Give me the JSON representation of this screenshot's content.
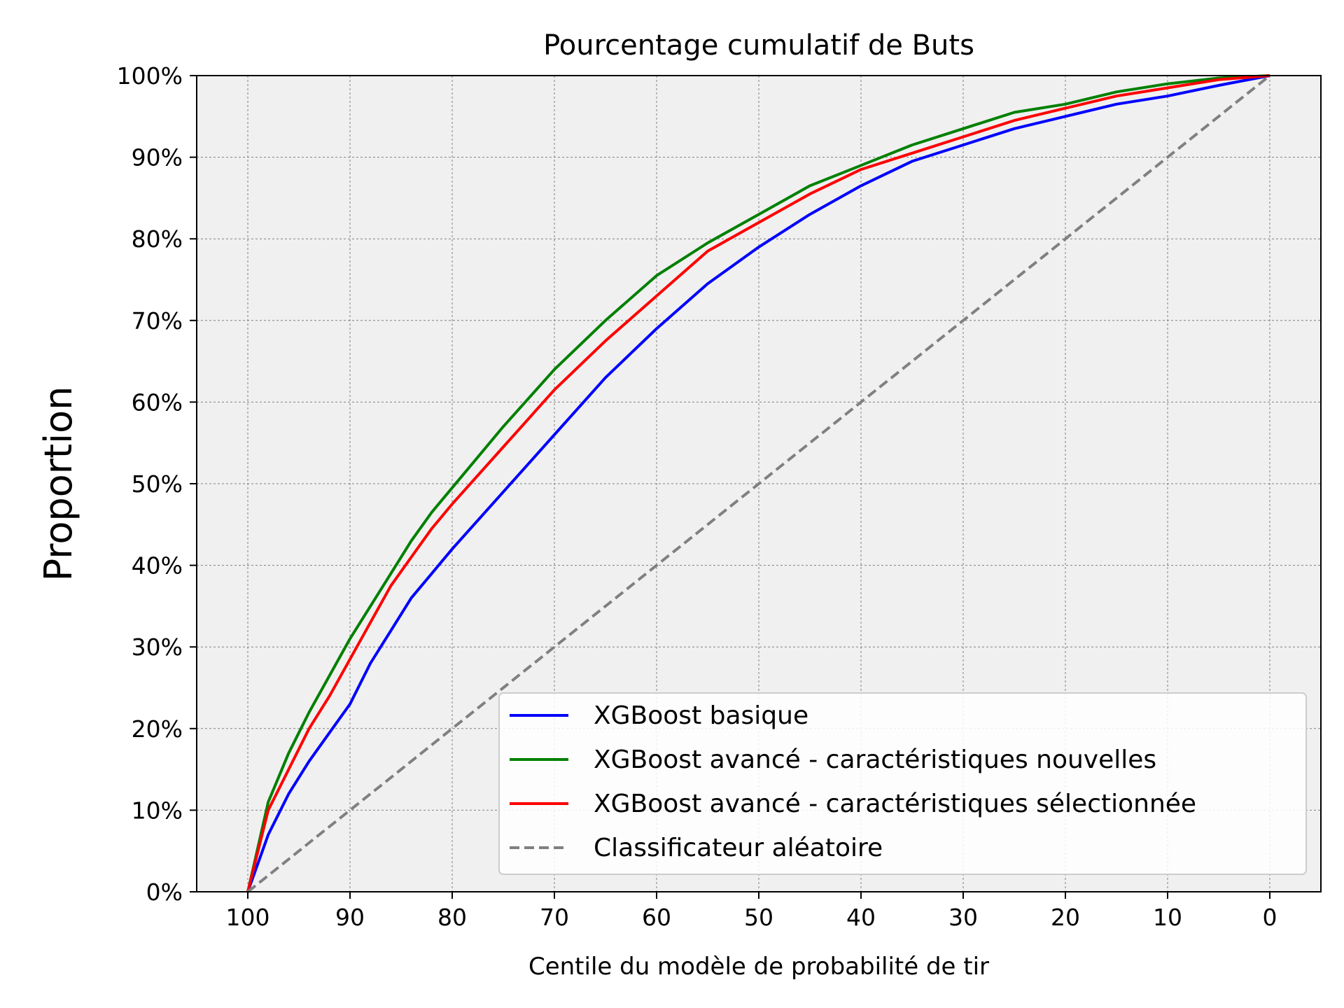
{
  "chart_data": {
    "type": "line",
    "title": "Pourcentage cumulatif de Buts",
    "xlabel": "Centile du modèle de probabilité de tir",
    "ylabel": "Proportion",
    "xlim": [
      105,
      -5
    ],
    "ylim": [
      0,
      100
    ],
    "x_reversed": true,
    "x_ticks": [
      100,
      90,
      80,
      70,
      60,
      50,
      40,
      30,
      20,
      10,
      0
    ],
    "x_tick_labels": [
      "100",
      "90",
      "80",
      "70",
      "60",
      "50",
      "40",
      "30",
      "20",
      "10",
      "0"
    ],
    "y_ticks": [
      0,
      10,
      20,
      30,
      40,
      50,
      60,
      70,
      80,
      90,
      100
    ],
    "y_tick_labels": [
      "0%",
      "10%",
      "20%",
      "30%",
      "40%",
      "50%",
      "60%",
      "70%",
      "80%",
      "90%",
      "100%"
    ],
    "grid": true,
    "legend_position": "bottom-right",
    "background_color": "#f0f0f0",
    "x": [
      100,
      98,
      96,
      94,
      92,
      90,
      88,
      86,
      84,
      82,
      80,
      75,
      70,
      65,
      60,
      55,
      50,
      45,
      40,
      35,
      30,
      25,
      20,
      15,
      10,
      5,
      0
    ],
    "series": [
      {
        "name": "XGBoost basique",
        "color": "#0000ff",
        "dash": "solid",
        "values": [
          0,
          7,
          12,
          16,
          19.5,
          23,
          28,
          32,
          36,
          39,
          42,
          49,
          56,
          63,
          69,
          74.5,
          79,
          83,
          86.5,
          89.5,
          91.5,
          93.5,
          95,
          96.5,
          97.5,
          98.8,
          100
        ]
      },
      {
        "name": "XGBoost avancé - caractéristiques nouvelles",
        "color": "#008000",
        "dash": "solid",
        "values": [
          0,
          11,
          17,
          22,
          26.5,
          31,
          35,
          39,
          43,
          46.5,
          49.5,
          57,
          64,
          70,
          75.5,
          79.5,
          83,
          86.5,
          89,
          91.5,
          93.5,
          95.5,
          96.5,
          98,
          99,
          99.7,
          100
        ]
      },
      {
        "name": "XGBoost avancé - caractéristiques sélectionnée",
        "color": "#ff0000",
        "dash": "solid",
        "values": [
          0,
          10,
          15,
          20,
          24,
          28.5,
          33,
          37.5,
          41,
          44.5,
          47.5,
          54.5,
          61.5,
          67.5,
          73,
          78.5,
          82,
          85.5,
          88.5,
          90.5,
          92.5,
          94.5,
          96,
          97.5,
          98.5,
          99.5,
          100
        ]
      },
      {
        "name": "Classificateur aléatoire",
        "color": "#808080",
        "dash": "dashed",
        "values": [
          0,
          2,
          4,
          6,
          8,
          10,
          12,
          14,
          16,
          18,
          20,
          25,
          30,
          35,
          40,
          45,
          50,
          55,
          60,
          65,
          70,
          75,
          80,
          85,
          90,
          95,
          100
        ]
      }
    ]
  }
}
